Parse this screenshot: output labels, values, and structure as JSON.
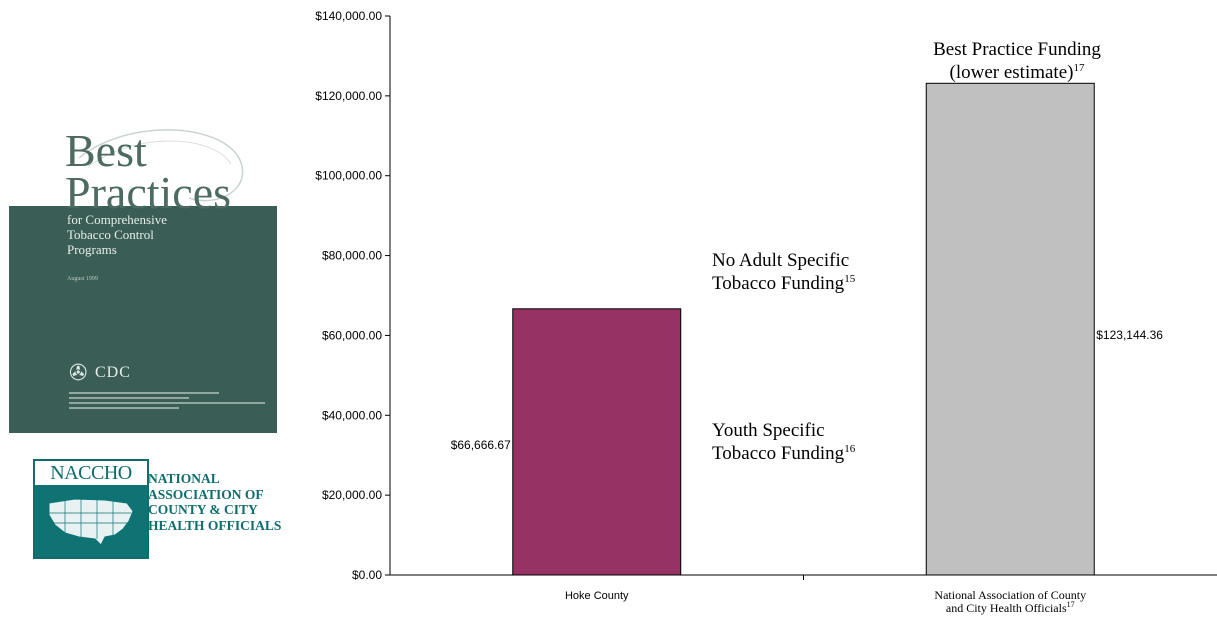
{
  "cover": {
    "title_line1": "Best",
    "title_line2": "Practices",
    "subtitle": "for Comprehensive\nTobacco Control\nPrograms",
    "date": "August 1999",
    "agency": "CDC"
  },
  "naccho": {
    "acronym": "NACCHO",
    "lines": [
      "NATIONAL",
      "ASSOCIATION OF",
      "COUNTY & CITY",
      "HEALTH OFFICIALS"
    ]
  },
  "colors": {
    "hoke_bar": "#963264",
    "naccho_bar": "#c0c0c0",
    "cover_green": "#3a5e55",
    "naccho_teal": "#0f6d6d"
  },
  "chart_data": {
    "type": "bar",
    "categories": [
      "Hoke County",
      "National Association of County and City Health Officials"
    ],
    "category_label_lines": [
      [
        "Hoke County"
      ],
      [
        "National Association of County",
        "and City Health Officials"
      ]
    ],
    "category_superscripts": [
      "",
      "17"
    ],
    "values": [
      66666.67,
      123144.36
    ],
    "value_labels": [
      "$66,666.67",
      "$123,144.36"
    ],
    "ylim": [
      0,
      140000
    ],
    "yticks": [
      0,
      20000,
      40000,
      60000,
      80000,
      100000,
      120000,
      140000
    ],
    "ytick_labels": [
      "$0.00",
      "$20,000.00",
      "$40,000.00",
      "$60,000.00",
      "$80,000.00",
      "$100,000.00",
      "$120,000.00",
      "$140,000.00"
    ],
    "grid": false,
    "annotations": [
      {
        "lines": [
          "No Adult Specific",
          "Tobacco Funding"
        ],
        "superscript": "15"
      },
      {
        "lines": [
          "Youth Specific",
          "Tobacco Funding"
        ],
        "superscript": "16"
      },
      {
        "lines": [
          "Best Practice Funding",
          "(lower estimate)"
        ],
        "superscript": "17"
      }
    ]
  }
}
